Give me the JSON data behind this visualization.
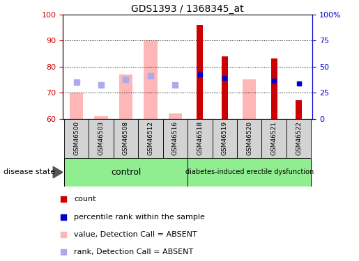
{
  "title": "GDS1393 / 1368345_at",
  "samples": [
    "GSM46500",
    "GSM46503",
    "GSM46508",
    "GSM46512",
    "GSM46516",
    "GSM46518",
    "GSM46519",
    "GSM46520",
    "GSM46521",
    "GSM46522"
  ],
  "n_control": 5,
  "n_disease": 5,
  "ylim_left": [
    60,
    100
  ],
  "ylim_right": [
    0,
    100
  ],
  "yticks_left": [
    60,
    70,
    80,
    90,
    100
  ],
  "yticks_right": [
    0,
    25,
    50,
    75,
    100
  ],
  "ytick_labels_right": [
    "0",
    "25",
    "50",
    "75",
    "100%"
  ],
  "pink_bar_top": [
    70,
    61,
    77,
    90,
    62,
    0,
    60,
    75,
    0,
    0
  ],
  "dark_red_bar_top": [
    0,
    0,
    0,
    0,
    0,
    96,
    84,
    0,
    83,
    67
  ],
  "blue_sq_val": [
    0,
    0,
    0,
    0,
    0,
    77,
    75.5,
    0,
    74.5,
    73.5
  ],
  "lightblue_sq_val": [
    74,
    73,
    75,
    76.5,
    73,
    0,
    0,
    0,
    0,
    0
  ],
  "bar_bottom": 60,
  "label_color_left": "#cc0000",
  "label_color_right": "#0000cc",
  "bar_color_pink": "#ffb6b6",
  "bar_color_darkred": "#cc0000",
  "sq_color_blue": "#0000cc",
  "sq_color_lightblue": "#aaaaee",
  "background_sample": "#d3d3d3",
  "group_green": "#90ee90"
}
